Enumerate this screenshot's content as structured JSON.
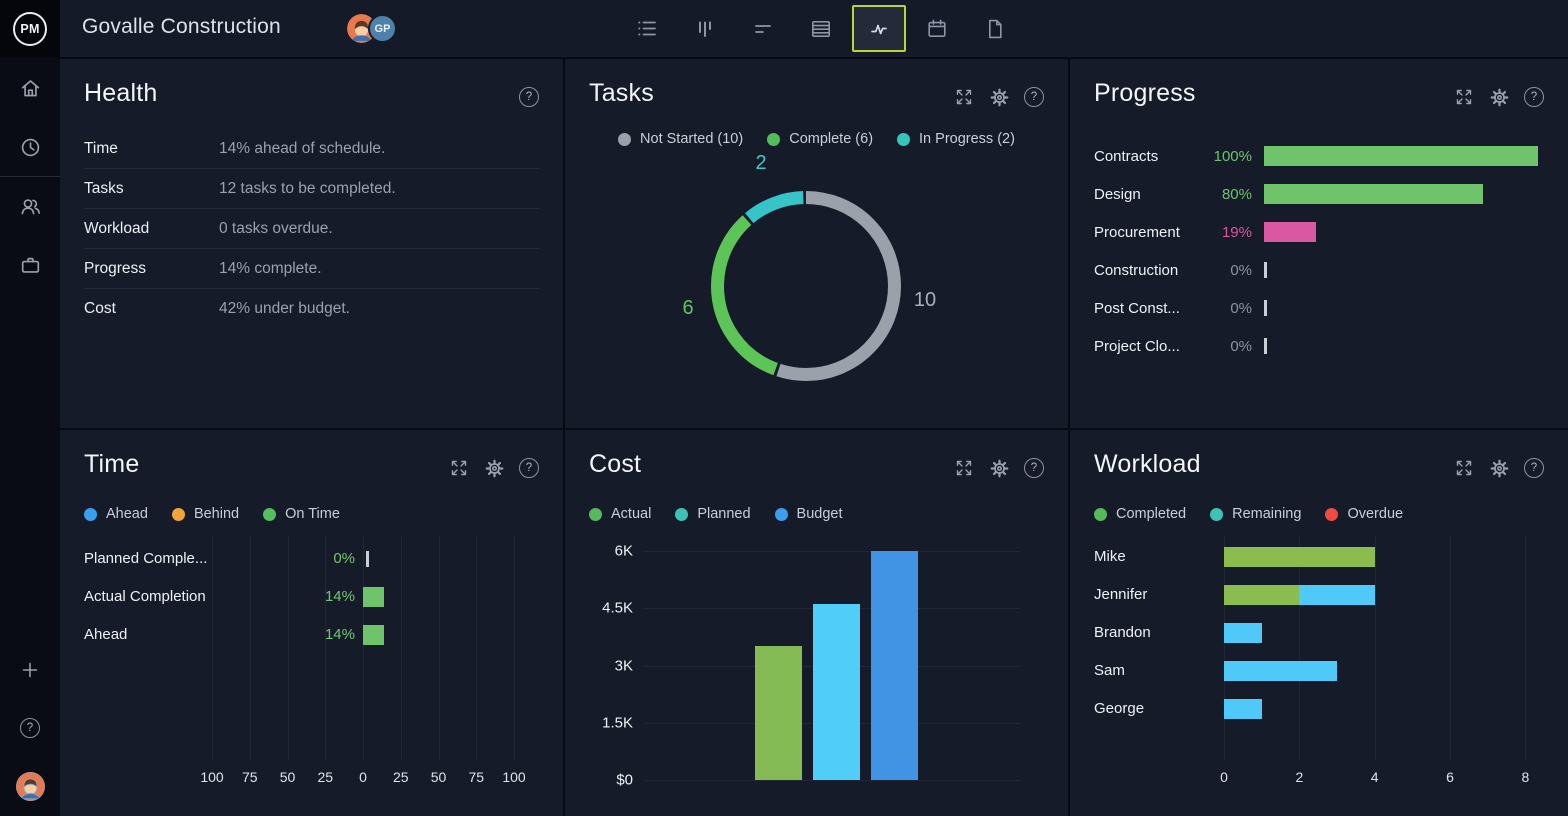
{
  "topbar": {
    "logo_text": "PM",
    "project_title": "Govalle Construction",
    "avatar_initials": "GP",
    "active_tool": "dashboard",
    "active_tool_border": "#b9d53a",
    "tools": [
      {
        "name": "list"
      },
      {
        "name": "board"
      },
      {
        "name": "gantt"
      },
      {
        "name": "sheet"
      },
      {
        "name": "dashboard"
      },
      {
        "name": "calendar"
      },
      {
        "name": "docs"
      }
    ]
  },
  "sidebar": {
    "top_icons": [
      "home",
      "clock"
    ],
    "group_icons": [
      "team",
      "portfolio"
    ],
    "bottom_icons": [
      "plus",
      "help"
    ]
  },
  "health": {
    "title": "Health",
    "rows": [
      {
        "label": "Time",
        "value": "14% ahead of schedule."
      },
      {
        "label": "Tasks",
        "value": "12 tasks to be completed."
      },
      {
        "label": "Workload",
        "value": "0 tasks overdue."
      },
      {
        "label": "Progress",
        "value": "14% complete."
      },
      {
        "label": "Cost",
        "value": "42% under budget."
      }
    ]
  },
  "tasks": {
    "title": "Tasks",
    "legend": [
      {
        "label": "Not Started (10)",
        "color": "#9aa0aa"
      },
      {
        "label": "Complete (6)",
        "color": "#53bd5c"
      },
      {
        "label": "In Progress (2)",
        "color": "#35c3bc"
      }
    ],
    "donut": {
      "segments": [
        {
          "name": "Not Started",
          "value": 10,
          "color": "#9ba1ab",
          "label_color": "#aab0ba"
        },
        {
          "name": "Complete",
          "value": 6,
          "color": "#5dc558",
          "label_color": "#5ec75a"
        },
        {
          "name": "In Progress",
          "value": 2,
          "color": "#36c4c9",
          "label_color": "#3ec9cd"
        }
      ]
    }
  },
  "progress": {
    "title": "Progress",
    "max": 100,
    "rows": [
      {
        "label": "Contracts",
        "pct": "100%",
        "value": 100,
        "color": "#6fc36a",
        "text_color": "#6fc36a"
      },
      {
        "label": "Design",
        "pct": "80%",
        "value": 80,
        "color": "#6fc36a",
        "text_color": "#6fc36a"
      },
      {
        "label": "Procurement",
        "pct": "19%",
        "value": 19,
        "color": "#da58a1",
        "text_color": "#da58a1"
      },
      {
        "label": "Construction",
        "pct": "0%",
        "value": 0,
        "color": "#c9cfd9",
        "text_color": "#8b92a3"
      },
      {
        "label": "Post Const...",
        "pct": "0%",
        "value": 0,
        "color": "#c9cfd9",
        "text_color": "#8b92a3"
      },
      {
        "label": "Project Clo...",
        "pct": "0%",
        "value": 0,
        "color": "#c9cfd9",
        "text_color": "#8b92a3"
      }
    ]
  },
  "time": {
    "title": "Time",
    "legend": [
      {
        "label": "Ahead",
        "color": "#38a1ef"
      },
      {
        "label": "Behind",
        "color": "#f0a43b"
      },
      {
        "label": "On Time",
        "color": "#55bd5b"
      }
    ],
    "axis": [
      "100",
      "75",
      "50",
      "25",
      "0",
      "25",
      "50",
      "75",
      "100"
    ],
    "rows": [
      {
        "label": "Planned Comple...",
        "pct": "0%",
        "value": 0
      },
      {
        "label": "Actual Completion",
        "pct": "14%",
        "value": 14
      },
      {
        "label": "Ahead",
        "pct": "14%",
        "value": 14
      }
    ],
    "bar_color": "#6fc368",
    "pct_color": "#74c873"
  },
  "cost": {
    "title": "Cost",
    "legend": [
      {
        "label": "Actual",
        "color": "#56ba5d"
      },
      {
        "label": "Planned",
        "color": "#3fc2b6"
      },
      {
        "label": "Budget",
        "color": "#3f9eec"
      }
    ],
    "y_ticks": [
      "6K",
      "4.5K",
      "3K",
      "1.5K",
      "$0"
    ],
    "y_max": 6000,
    "bars": [
      {
        "name": "Actual",
        "value": 3500,
        "color": "#84bb55"
      },
      {
        "name": "Planned",
        "value": 4600,
        "color": "#50cdf8"
      },
      {
        "name": "Budget",
        "value": 6000,
        "color": "#4193e3"
      }
    ]
  },
  "workload": {
    "title": "Workload",
    "legend": [
      {
        "label": "Completed",
        "color": "#56ba5d"
      },
      {
        "label": "Remaining",
        "color": "#3fc2b6"
      },
      {
        "label": "Overdue",
        "color": "#ee4b42"
      }
    ],
    "x_ticks": [
      "0",
      "2",
      "4",
      "6",
      "8"
    ],
    "x_max": 8,
    "rows": [
      {
        "name": "Mike",
        "completed": 4,
        "remaining": 0
      },
      {
        "name": "Jennifer",
        "completed": 2,
        "remaining": 2
      },
      {
        "name": "Brandon",
        "completed": 0,
        "remaining": 1
      },
      {
        "name": "Sam",
        "completed": 0,
        "remaining": 3
      },
      {
        "name": "George",
        "completed": 0,
        "remaining": 1
      }
    ],
    "completed_color": "#8abc4e",
    "remaining_color": "#4fc9f7"
  },
  "chart_data": [
    {
      "type": "pie",
      "title": "Tasks",
      "labels": [
        "Not Started",
        "Complete",
        "In Progress"
      ],
      "values": [
        10,
        6,
        2
      ],
      "colors": [
        "#9ba1ab",
        "#5dc558",
        "#36c4c9"
      ],
      "style": "donut",
      "legend_position": "top"
    },
    {
      "type": "bar",
      "title": "Progress",
      "orientation": "horizontal",
      "categories": [
        "Contracts",
        "Design",
        "Procurement",
        "Construction",
        "Post Const...",
        "Project Clo..."
      ],
      "values": [
        100,
        80,
        19,
        0,
        0,
        0
      ],
      "unit": "%",
      "xlim": [
        0,
        100
      ]
    },
    {
      "type": "bar",
      "title": "Time",
      "orientation": "horizontal",
      "categories": [
        "Planned Comple...",
        "Actual Completion",
        "Ahead"
      ],
      "values": [
        0,
        14,
        14
      ],
      "unit": "%",
      "xlim": [
        -100,
        100
      ],
      "x_ticks": [
        100,
        75,
        50,
        25,
        0,
        25,
        50,
        75,
        100
      ],
      "grid": true
    },
    {
      "type": "bar",
      "title": "Cost",
      "categories": [
        "Actual",
        "Planned",
        "Budget"
      ],
      "values": [
        3500,
        4600,
        6000
      ],
      "ylabel": "$",
      "ylim": [
        0,
        6000
      ],
      "y_ticks": [
        "$0",
        "1.5K",
        "3K",
        "4.5K",
        "6K"
      ],
      "grid": true
    },
    {
      "type": "bar",
      "title": "Workload",
      "orientation": "horizontal",
      "categories": [
        "Mike",
        "Jennifer",
        "Brandon",
        "Sam",
        "George"
      ],
      "series": [
        {
          "name": "Completed",
          "values": [
            4,
            2,
            0,
            0,
            0
          ]
        },
        {
          "name": "Remaining",
          "values": [
            0,
            2,
            1,
            3,
            1
          ]
        },
        {
          "name": "Overdue",
          "values": [
            0,
            0,
            0,
            0,
            0
          ]
        }
      ],
      "stacked": true,
      "xlim": [
        0,
        8
      ],
      "x_ticks": [
        0,
        2,
        4,
        6,
        8
      ],
      "grid": true
    }
  ]
}
